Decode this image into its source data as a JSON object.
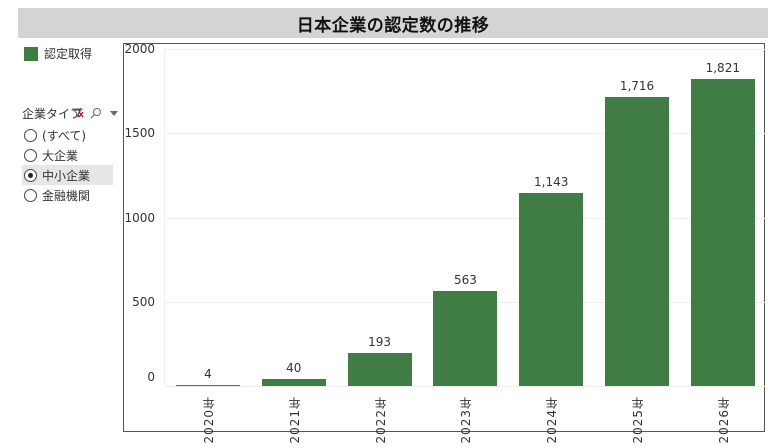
{
  "title": "日本企業の認定数の推移",
  "legend": {
    "label": "認定取得",
    "color": "#3f7d44"
  },
  "filter": {
    "title": "企業タイプ",
    "icons": [
      "filter-clear-icon",
      "search-icon",
      "dropdown-icon"
    ],
    "options": [
      {
        "label": "(すべて)",
        "checked": false
      },
      {
        "label": "大企業",
        "checked": false
      },
      {
        "label": "中小企業",
        "checked": true
      },
      {
        "label": "金融機関",
        "checked": false
      }
    ]
  },
  "colors": {
    "bar": "#3f7d44",
    "title_bg": "#d4d4d4",
    "selection_bg": "#e6e6e6",
    "gridline": "#eeeeee"
  },
  "chart_data": {
    "type": "bar",
    "title": "日本企業の認定数の推移",
    "xlabel": "",
    "ylabel": "",
    "categories": [
      "2020年",
      "2021年",
      "2022年",
      "2023年",
      "2024年",
      "2025年",
      "2026年"
    ],
    "values": [
      4,
      40,
      193,
      563,
      1143,
      1716,
      1821
    ],
    "value_labels": [
      "4",
      "40",
      "193",
      "563",
      "1,143",
      "1,716",
      "1,821"
    ],
    "series": [
      {
        "name": "認定取得",
        "values": [
          4,
          40,
          193,
          563,
          1143,
          1716,
          1821
        ]
      }
    ],
    "ylim": [
      0,
      2000
    ],
    "yticks": [
      0,
      500,
      1000,
      1500,
      2000
    ],
    "ytick_labels": [
      "0",
      "500",
      "1000",
      "1500",
      "2000"
    ],
    "grid": true,
    "legend_position": "top-left",
    "x_label_rotation": -90
  }
}
